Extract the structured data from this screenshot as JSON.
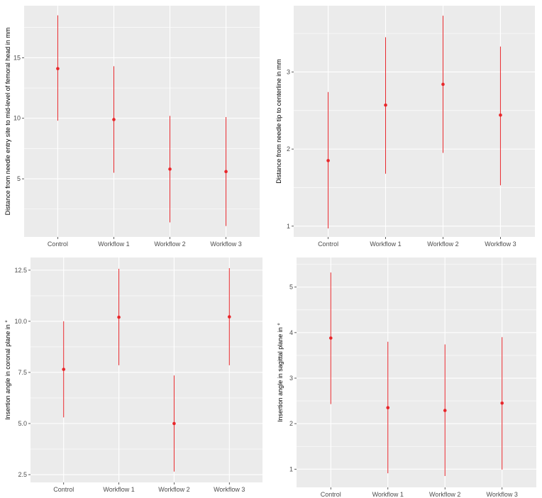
{
  "chart_data": [
    {
      "type": "scatter",
      "subtype": "point-range",
      "categories": [
        "Control",
        "Workflow 1",
        "Workflow 2",
        "Workflow 3"
      ],
      "values": [
        14.1,
        9.9,
        5.8,
        5.6
      ],
      "lower": [
        9.8,
        5.5,
        1.4,
        1.1
      ],
      "upper": [
        18.5,
        14.3,
        10.2,
        10.1
      ],
      "yticks": [
        5,
        10,
        15
      ],
      "ylim": [
        0.2,
        19.3
      ],
      "xlabel": "",
      "ylabel": "Distance from needle entry site to mid-level of femoral head in mm",
      "grid": true,
      "color": "#e8262a",
      "panel_background": "#ebebeb"
    },
    {
      "type": "scatter",
      "subtype": "point-range",
      "categories": [
        "Control",
        "Workflow 1",
        "Workflow 2",
        "Workflow 3"
      ],
      "values": [
        1.85,
        2.57,
        2.84,
        2.44
      ],
      "lower": [
        0.97,
        1.68,
        1.95,
        1.53
      ],
      "upper": [
        2.74,
        3.45,
        3.73,
        3.33
      ],
      "yticks": [
        1,
        2,
        3
      ],
      "ylim": [
        0.86,
        3.86
      ],
      "xlabel": "",
      "ylabel": "Distance from needle tip to centerline in mm",
      "grid": true,
      "color": "#e8262a",
      "panel_background": "#ebebeb"
    },
    {
      "type": "scatter",
      "subtype": "point-range",
      "categories": [
        "Control",
        "Workflow 1",
        "Workflow 2",
        "Workflow 3"
      ],
      "values": [
        7.65,
        10.2,
        5.0,
        10.22
      ],
      "lower": [
        5.3,
        7.85,
        2.65,
        7.85
      ],
      "upper": [
        10.0,
        12.57,
        7.35,
        12.6
      ],
      "yticks": [
        2.5,
        5.0,
        7.5,
        10.0,
        12.5
      ],
      "ytick_labels": [
        "2.5",
        "5.0",
        "7.5",
        "10.0",
        "12.5"
      ],
      "ylim": [
        2.12,
        13.12
      ],
      "xlabel": "",
      "ylabel": "Insertion angle in coronal plane in °",
      "grid": true,
      "color": "#e8262a",
      "panel_background": "#ebebeb"
    },
    {
      "type": "scatter",
      "subtype": "point-range",
      "categories": [
        "Control",
        "Workflow 1",
        "Workflow 2",
        "Workflow 3"
      ],
      "values": [
        3.88,
        2.35,
        2.29,
        2.45
      ],
      "lower": [
        2.43,
        0.91,
        0.85,
        0.99
      ],
      "upper": [
        5.32,
        3.8,
        3.74,
        3.9
      ],
      "yticks": [
        1,
        2,
        3,
        4,
        5
      ],
      "ylim": [
        0.6,
        5.65
      ],
      "xlabel": "",
      "ylabel": "Insertion angle in sagittal plane in °",
      "grid": true,
      "color": "#e8262a",
      "panel_background": "#ebebeb"
    }
  ]
}
